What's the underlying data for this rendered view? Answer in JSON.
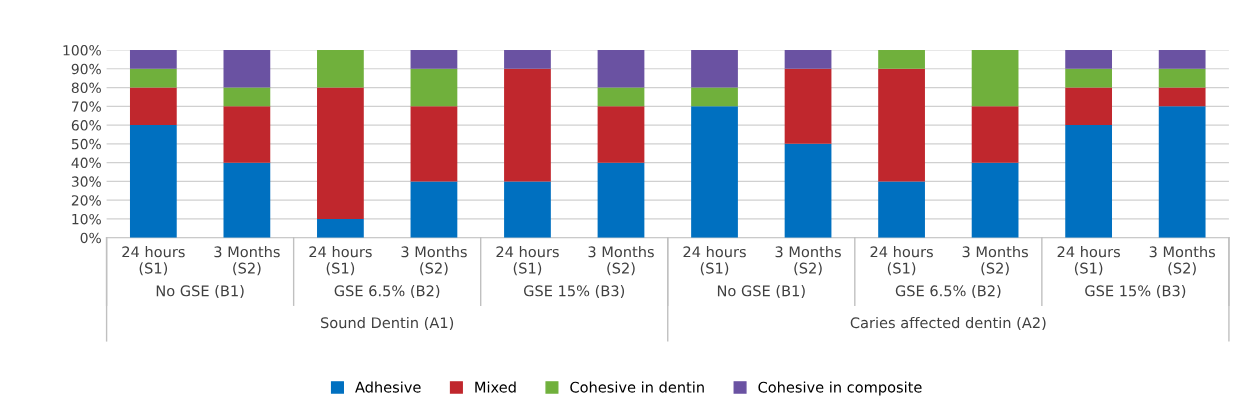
{
  "chart_data": {
    "type": "bar",
    "stacked": true,
    "categories": [
      "24 hours\n(S1)",
      "3 Months\n(S2)",
      "24 hours\n(S1)",
      "3 Months\n(S2)",
      "24 hours\n(S1)",
      "3 Months\n(S2)",
      "24 hours\n(S1)",
      "3 Months\n(S2)",
      "24 hours\n(S1)",
      "3 Months\n(S2)",
      "24 hours\n(S1)",
      "3 Months\n(S2)"
    ],
    "series": [
      {
        "name": "Adhesive",
        "color": "#0070c0",
        "values": [
          60,
          40,
          10,
          30,
          30,
          40,
          70,
          50,
          30,
          40,
          60,
          70
        ]
      },
      {
        "name": "Mixed",
        "color": "#c0272d",
        "values": [
          20,
          30,
          70,
          40,
          60,
          30,
          0,
          40,
          60,
          30,
          20,
          10
        ]
      },
      {
        "name": "Cohesive in dentin",
        "color": "#70b03c",
        "values": [
          10,
          10,
          20,
          20,
          0,
          10,
          10,
          0,
          10,
          30,
          10,
          10
        ]
      },
      {
        "name": "Cohesive in composite",
        "color": "#6a52a2",
        "values": [
          10,
          20,
          0,
          10,
          10,
          20,
          20,
          10,
          0,
          0,
          10,
          10
        ]
      }
    ],
    "ylim": [
      0,
      100
    ],
    "yticks": [
      {
        "value": 0,
        "label": "0%"
      },
      {
        "value": 10,
        "label": "10%"
      },
      {
        "value": 20,
        "label": "20%"
      },
      {
        "value": 30,
        "label": "30%"
      },
      {
        "value": 40,
        "label": "40%"
      },
      {
        "value": 50,
        "label": "50%"
      },
      {
        "value": 60,
        "label": "60%"
      },
      {
        "value": 70,
        "label": "70%"
      },
      {
        "value": 80,
        "label": "80%"
      },
      {
        "value": 90,
        "label": "90%"
      },
      {
        "value": 100,
        "label": "100%"
      }
    ],
    "grid": "y",
    "legend": "bottom",
    "annotations": [
      "No GSE (B1)",
      "GSE 6.5% (B2)",
      "GSE 15% (B3)",
      "No GSE (B1)",
      "GSE 6.5% (B2)",
      "GSE 15% (B3)",
      "Sound Dentin (A1)",
      "Caries affected dentin (A2)"
    ]
  }
}
